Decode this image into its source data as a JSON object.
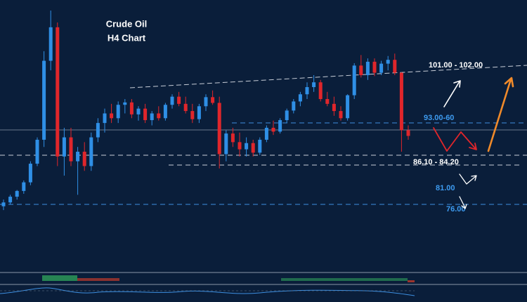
{
  "chart_data": {
    "type": "candlestick",
    "title": "Crude Oil",
    "subtitle": "H4 Chart",
    "ylim": [
      62.2,
      118.7
    ],
    "up_color": "#2f8fe6",
    "down_color": "#e0262b",
    "open": [
      75.6,
      76.4,
      77.6,
      78.8,
      80.6,
      84.5,
      89.5,
      106,
      113,
      86,
      90,
      85,
      87,
      84,
      90,
      93,
      95,
      94,
      96.8,
      97.3,
      94.8,
      96,
      93.6,
      95,
      94,
      96.8,
      98.5,
      97,
      95.5,
      93.8,
      96.5,
      98.4,
      97.2,
      86.5,
      90.8,
      89,
      87.5,
      88.8,
      86.8,
      89.5,
      92,
      91.2,
      93.6,
      95.6,
      97.5,
      99,
      100.5,
      101.5,
      98,
      97,
      95.5,
      94,
      98.8,
      105,
      103,
      105.8,
      103.5,
      105.4,
      106.2,
      103.5,
      91.5
    ],
    "high": [
      77,
      78,
      79,
      81,
      85,
      90,
      108,
      116.5,
      114,
      92,
      92,
      88,
      89,
      91,
      94,
      96,
      97,
      97.5,
      98,
      98,
      96.5,
      97,
      95.5,
      96.5,
      97.2,
      99,
      99.5,
      98.5,
      97,
      97,
      99,
      99.8,
      98.5,
      91.5,
      92,
      91,
      90,
      89.5,
      90,
      92.5,
      93.5,
      94,
      96,
      98,
      99.5,
      101.5,
      103,
      102,
      99.5,
      98.5,
      96.5,
      99,
      105.5,
      107.2,
      106.5,
      106.5,
      106,
      107,
      107.5,
      103.6,
      92.5
    ],
    "low": [
      74.8,
      76,
      77,
      78.2,
      80,
      84,
      88,
      104,
      84,
      82,
      84,
      78,
      83,
      83,
      89,
      91,
      93,
      93,
      95,
      94,
      93.5,
      93,
      92.5,
      93.5,
      93.5,
      96,
      96.5,
      95,
      93,
      93,
      95.5,
      96.8,
      83.5,
      85,
      88,
      86,
      86,
      86,
      86.3,
      89,
      90.5,
      90.8,
      93,
      95,
      96.5,
      98,
      99.5,
      97.5,
      96.5,
      94.5,
      93.5,
      93.5,
      98,
      102.5,
      102,
      102.8,
      103,
      104,
      103,
      87,
      89.5
    ],
    "close": [
      76.4,
      77.6,
      78.8,
      80.6,
      84.5,
      89.5,
      106,
      113,
      86,
      90,
      85,
      87,
      84,
      90,
      93,
      95,
      94,
      96.8,
      97.3,
      94.8,
      96,
      93.6,
      95,
      94,
      96.8,
      98.5,
      97,
      95.5,
      93.8,
      96.5,
      98.4,
      97.2,
      86.5,
      90.8,
      89,
      87.5,
      88.8,
      86.8,
      89.5,
      92,
      91.2,
      93.6,
      95.6,
      97.5,
      99,
      100.5,
      101.5,
      98,
      97,
      95.5,
      94,
      98.8,
      105,
      103,
      105.8,
      103.5,
      105.4,
      106.2,
      103.5,
      91.5,
      90.3
    ],
    "annotations": [
      {
        "text": "101.00 - 102.00",
        "color": "#ffffff"
      },
      {
        "text": "93.00-60",
        "color": "#3d9bf0"
      },
      {
        "text": "86.10 - 84.20",
        "color": "#ffffff"
      },
      {
        "text": "81.00",
        "color": "#3d9bf0"
      },
      {
        "text": "76.00",
        "color": "#3d9bf0"
      }
    ]
  }
}
